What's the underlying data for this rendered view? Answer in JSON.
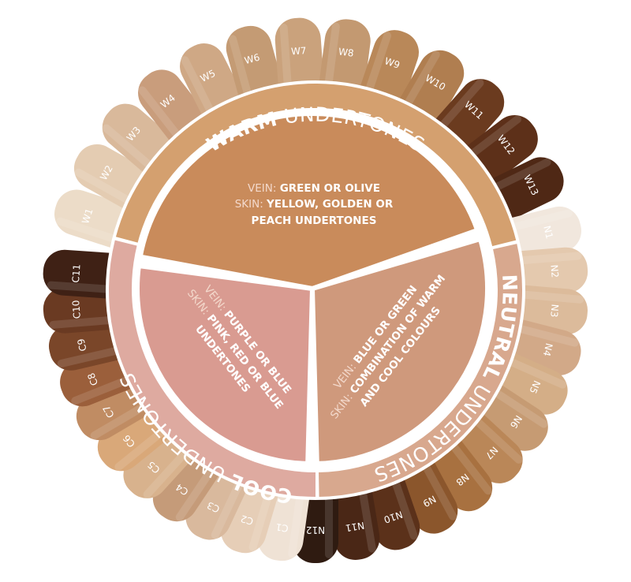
{
  "colors": {
    "warm_ring": "#d4a06f",
    "warm_sector": "#c98b5b",
    "neutral_ring": "#d8a88e",
    "neutral_sector": "#cf997c",
    "cool_ring": "#deaaa0",
    "cool_sector": "#d99b91"
  },
  "ring": {
    "warm": {
      "bold": "WARM",
      "rest": " UNDERTONES"
    },
    "neutral": {
      "bold": "NEUTRAL",
      "rest": " UNDERTONES"
    },
    "cool": {
      "bold": "COOL",
      "rest": " UNDERTONES"
    }
  },
  "sectors": {
    "warm": {
      "vein_key": "VEIN: ",
      "vein": "GREEN OR OLIVE",
      "skin_key": "SKIN: ",
      "skin": "YELLOW, GOLDEN OR",
      "skin2": "PEACH UNDERTONES"
    },
    "cool": {
      "vein_key": "VEIN: ",
      "vein": "PURPLE OR BLUE",
      "skin_key": "SKIN: ",
      "skin": "PINK, RED OR BLUE",
      "skin2": "UNDERTONES"
    },
    "neutral": {
      "vein_key": "VEIN: ",
      "vein": "BLUE OR GREEN",
      "skin_key": "SKIN: ",
      "skin": "COMBINATION OF WARM",
      "skin2": "AND COOL COLOURS"
    }
  },
  "swatches": {
    "warm": [
      {
        "label": "W1",
        "color": "#ecdcc8"
      },
      {
        "label": "W2",
        "color": "#e4ccb2"
      },
      {
        "label": "W3",
        "color": "#d9b99b"
      },
      {
        "label": "W4",
        "color": "#c99d7c"
      },
      {
        "label": "W5",
        "color": "#cfa885"
      },
      {
        "label": "W6",
        "color": "#c49b74"
      },
      {
        "label": "W7",
        "color": "#caa27c"
      },
      {
        "label": "W8",
        "color": "#c39971"
      },
      {
        "label": "W9",
        "color": "#b98859"
      },
      {
        "label": "W10",
        "color": "#b07e50"
      },
      {
        "label": "W11",
        "color": "#6b3b1f"
      },
      {
        "label": "W12",
        "color": "#5d3019"
      },
      {
        "label": "W13",
        "color": "#4f2815"
      }
    ],
    "neutral": [
      {
        "label": "N1",
        "color": "#f1e7dd"
      },
      {
        "label": "N2",
        "color": "#e4c9ae"
      },
      {
        "label": "N3",
        "color": "#dcbb9b"
      },
      {
        "label": "N4",
        "color": "#d2a988"
      },
      {
        "label": "N5",
        "color": "#d4ae87"
      },
      {
        "label": "N6",
        "color": "#c69b73"
      },
      {
        "label": "N7",
        "color": "#ba8758"
      },
      {
        "label": "N8",
        "color": "#a87140"
      },
      {
        "label": "N9",
        "color": "#8b562c"
      },
      {
        "label": "N10",
        "color": "#5b311a"
      },
      {
        "label": "N11",
        "color": "#4a2716"
      },
      {
        "label": "N12",
        "color": "#2f1b11"
      }
    ],
    "cool": [
      {
        "label": "C1",
        "color": "#efe2d5"
      },
      {
        "label": "C2",
        "color": "#e6ceb7"
      },
      {
        "label": "C3",
        "color": "#d9b99d"
      },
      {
        "label": "C4",
        "color": "#c59b79"
      },
      {
        "label": "C5",
        "color": "#d8b28d"
      },
      {
        "label": "C6",
        "color": "#d9a879"
      },
      {
        "label": "C7",
        "color": "#c08c63"
      },
      {
        "label": "C8",
        "color": "#9b5f3b"
      },
      {
        "label": "C9",
        "color": "#7a4629"
      },
      {
        "label": "C10",
        "color": "#6a3a22"
      },
      {
        "label": "C11",
        "color": "#3f2115"
      }
    ]
  }
}
